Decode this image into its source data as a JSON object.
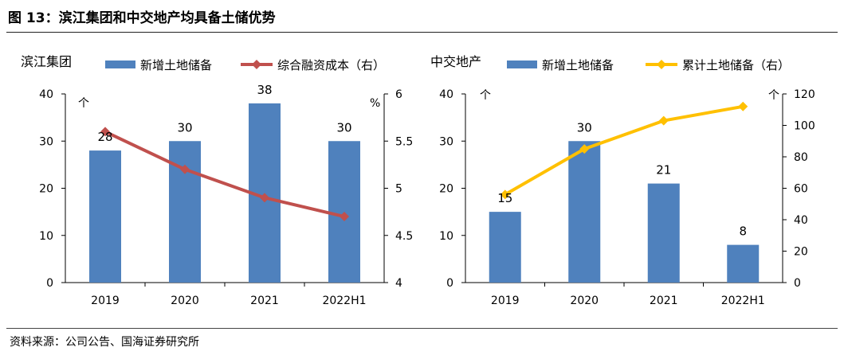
{
  "figure_title": "图 13：滨江集团和中交地产均具备土储优势",
  "source_note": "资料来源：公司公告、国海证券研究所",
  "colors": {
    "bar": "#4f81bd",
    "line_left": "#c0504d",
    "line_right": "#ffc000",
    "axis": "#000000"
  },
  "chart_data": [
    {
      "type": "bar",
      "company": "滨江集团",
      "categories": [
        "2019",
        "2020",
        "2021",
        "2022H1"
      ],
      "series": [
        {
          "name": "新增土地储备",
          "kind": "bar",
          "axis": "left",
          "values": [
            28,
            30,
            38,
            30
          ],
          "labels": [
            "28",
            "30",
            "38",
            "30"
          ]
        },
        {
          "name": "综合融资成本（右）",
          "kind": "line",
          "axis": "right",
          "values": [
            5.6,
            5.2,
            4.9,
            4.7
          ]
        }
      ],
      "left_axis": {
        "unit": "个",
        "ylim": [
          0,
          40
        ],
        "ticks": [
          "0",
          "10",
          "20",
          "30",
          "40"
        ]
      },
      "right_axis": {
        "unit": "%",
        "ylim": [
          4,
          6
        ],
        "ticks": [
          "4",
          "4.5",
          "5",
          "5.5",
          "6"
        ]
      }
    },
    {
      "type": "bar",
      "company": "中交地产",
      "categories": [
        "2019",
        "2020",
        "2021",
        "2022H1"
      ],
      "series": [
        {
          "name": "新增土地储备",
          "kind": "bar",
          "axis": "left",
          "values": [
            15,
            30,
            21,
            8
          ],
          "labels": [
            "15",
            "30",
            "21",
            "8"
          ]
        },
        {
          "name": "累计土地储备（右）",
          "kind": "line",
          "axis": "right",
          "values": [
            56,
            85,
            103,
            112
          ]
        }
      ],
      "left_axis": {
        "unit": "个",
        "ylim": [
          0,
          40
        ],
        "ticks": [
          "0",
          "10",
          "20",
          "30",
          "40"
        ]
      },
      "right_axis": {
        "unit": "个",
        "ylim": [
          0,
          120
        ],
        "ticks": [
          "0",
          "20",
          "40",
          "60",
          "80",
          "100",
          "120"
        ]
      }
    }
  ]
}
